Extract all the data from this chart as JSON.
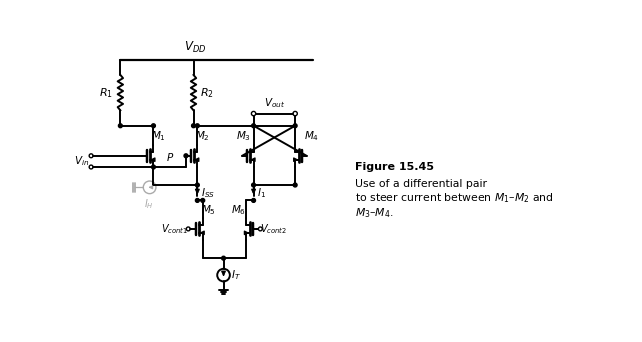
{
  "background_color": "#ffffff",
  "line_color": "#000000",
  "gray_color": "#aaaaaa",
  "figsize": [
    6.42,
    3.42
  ],
  "dpi": 100,
  "lw": 1.4,
  "xlim": [
    0,
    6.42
  ],
  "ylim": [
    0,
    3.42
  ]
}
